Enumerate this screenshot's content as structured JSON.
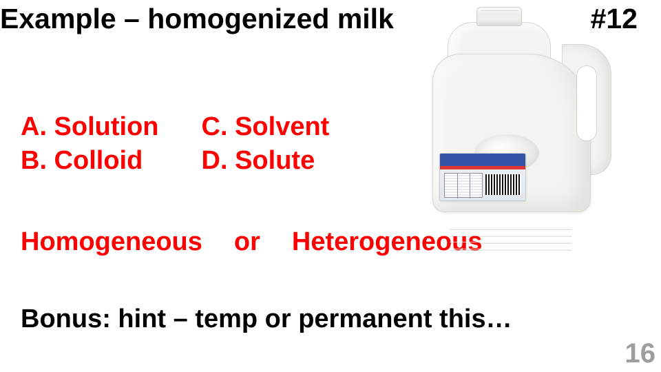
{
  "title": {
    "text": "Example – homogenized milk",
    "fontsize": 41
  },
  "question_number": {
    "text": "#12",
    "fontsize": 41
  },
  "options": {
    "color": "#ff0000",
    "fontsize": 38,
    "col1": [
      "A. Solution",
      "B. Colloid"
    ],
    "col2": [
      "C. Solvent",
      "D. Solute"
    ]
  },
  "row3": {
    "color": "#ff0000",
    "fontsize": 38,
    "left": "Homogeneous",
    "mid": "or",
    "right": "Heterogeneous"
  },
  "bonus": {
    "text": "Bonus: hint – temp or permanent this…",
    "fontsize": 38,
    "color": "#000000"
  },
  "page": {
    "number": "16",
    "fontsize": 40,
    "color": "#9e9e9e"
  },
  "image": {
    "description": "milk-gallon-jug",
    "body_color": "#f3f3f0",
    "border_color": "#d6d6d2",
    "label_blue": "#3354a5",
    "label_red": "#d33"
  }
}
